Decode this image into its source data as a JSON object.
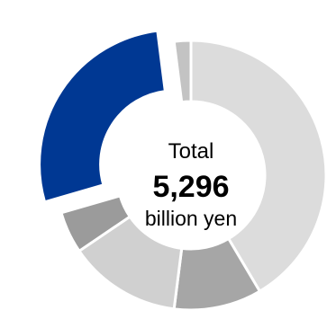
{
  "chart_data": {
    "type": "pie",
    "donut": true,
    "center_text": {
      "line1": "Total",
      "value": "5,296",
      "line3": "billion yen"
    },
    "slices": [
      {
        "value": 41.5,
        "color": "#dcdcdc",
        "explode": false
      },
      {
        "value": 10.5,
        "color": "#a6a6a6",
        "explode": false
      },
      {
        "value": 13.5,
        "color": "#d0d0d0",
        "explode": false
      },
      {
        "value": 5.0,
        "color": "#9b9b9b",
        "explode": false
      },
      {
        "value": 27.5,
        "color": "#003893",
        "explode": true
      },
      {
        "value": 2.0,
        "color": "#c3c3c3",
        "explode": false
      }
    ],
    "legend": "none"
  }
}
